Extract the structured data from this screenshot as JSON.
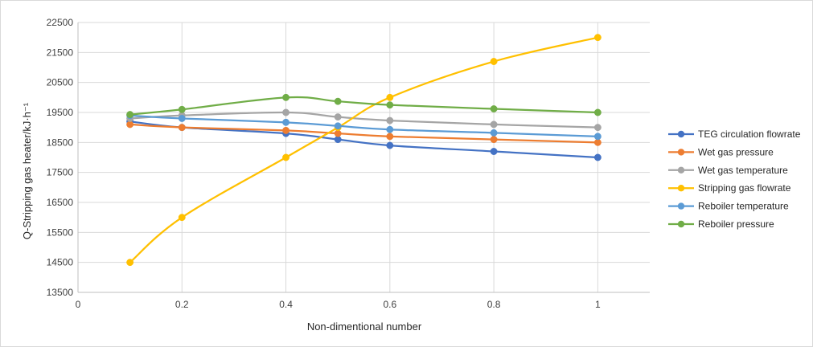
{
  "chart_data": {
    "type": "line",
    "smooth": true,
    "xlabel": "Non-dimentional number",
    "ylabel": "Q-Stripping gas heater/kJ·h⁻¹",
    "xlim": [
      0,
      1.1
    ],
    "ylim": [
      13500,
      22500
    ],
    "x_ticks": [
      0,
      0.2,
      0.4,
      0.6,
      0.8,
      1
    ],
    "x_tick_labels": [
      "0",
      "0.2",
      "0.4",
      "0.6",
      "0.8",
      "1"
    ],
    "y_ticks": [
      13500,
      14500,
      15500,
      16500,
      17500,
      18500,
      19500,
      20500,
      21500,
      22500
    ],
    "y_tick_labels": [
      "13500",
      "14500",
      "15500",
      "16500",
      "17500",
      "18500",
      "19500",
      "20500",
      "21500",
      "22500"
    ],
    "grid": "vertical and horizontal",
    "legend_position": "right",
    "x": [
      0.1,
      0.2,
      0.4,
      0.5,
      0.6,
      0.8,
      1.0
    ],
    "series": [
      {
        "name": "TEG circulation flowrate",
        "color": "#4472c4",
        "values": [
          19200,
          19000,
          18800,
          18600,
          18400,
          18200,
          18000
        ]
      },
      {
        "name": "Wet gas pressure",
        "color": "#ed7d31",
        "values": [
          19100,
          19000,
          18900,
          18800,
          18700,
          18600,
          18500
        ]
      },
      {
        "name": "Wet gas temperature",
        "color": "#a5a5a5",
        "values": [
          19300,
          19400,
          19500,
          19350,
          19230,
          19100,
          19000
        ]
      },
      {
        "name": "Stripping gas flowrate",
        "color": "#ffc000",
        "values": [
          14500,
          16000,
          18000,
          19000,
          20000,
          21200,
          22000
        ]
      },
      {
        "name": "Reboiler temperature",
        "color": "#5b9bd5",
        "values": [
          19400,
          19300,
          19170,
          19050,
          18930,
          18820,
          18700
        ]
      },
      {
        "name": "Reboiler pressure",
        "color": "#70ad47",
        "values": [
          19430,
          19600,
          20000,
          19870,
          19750,
          19620,
          19500
        ]
      }
    ]
  }
}
